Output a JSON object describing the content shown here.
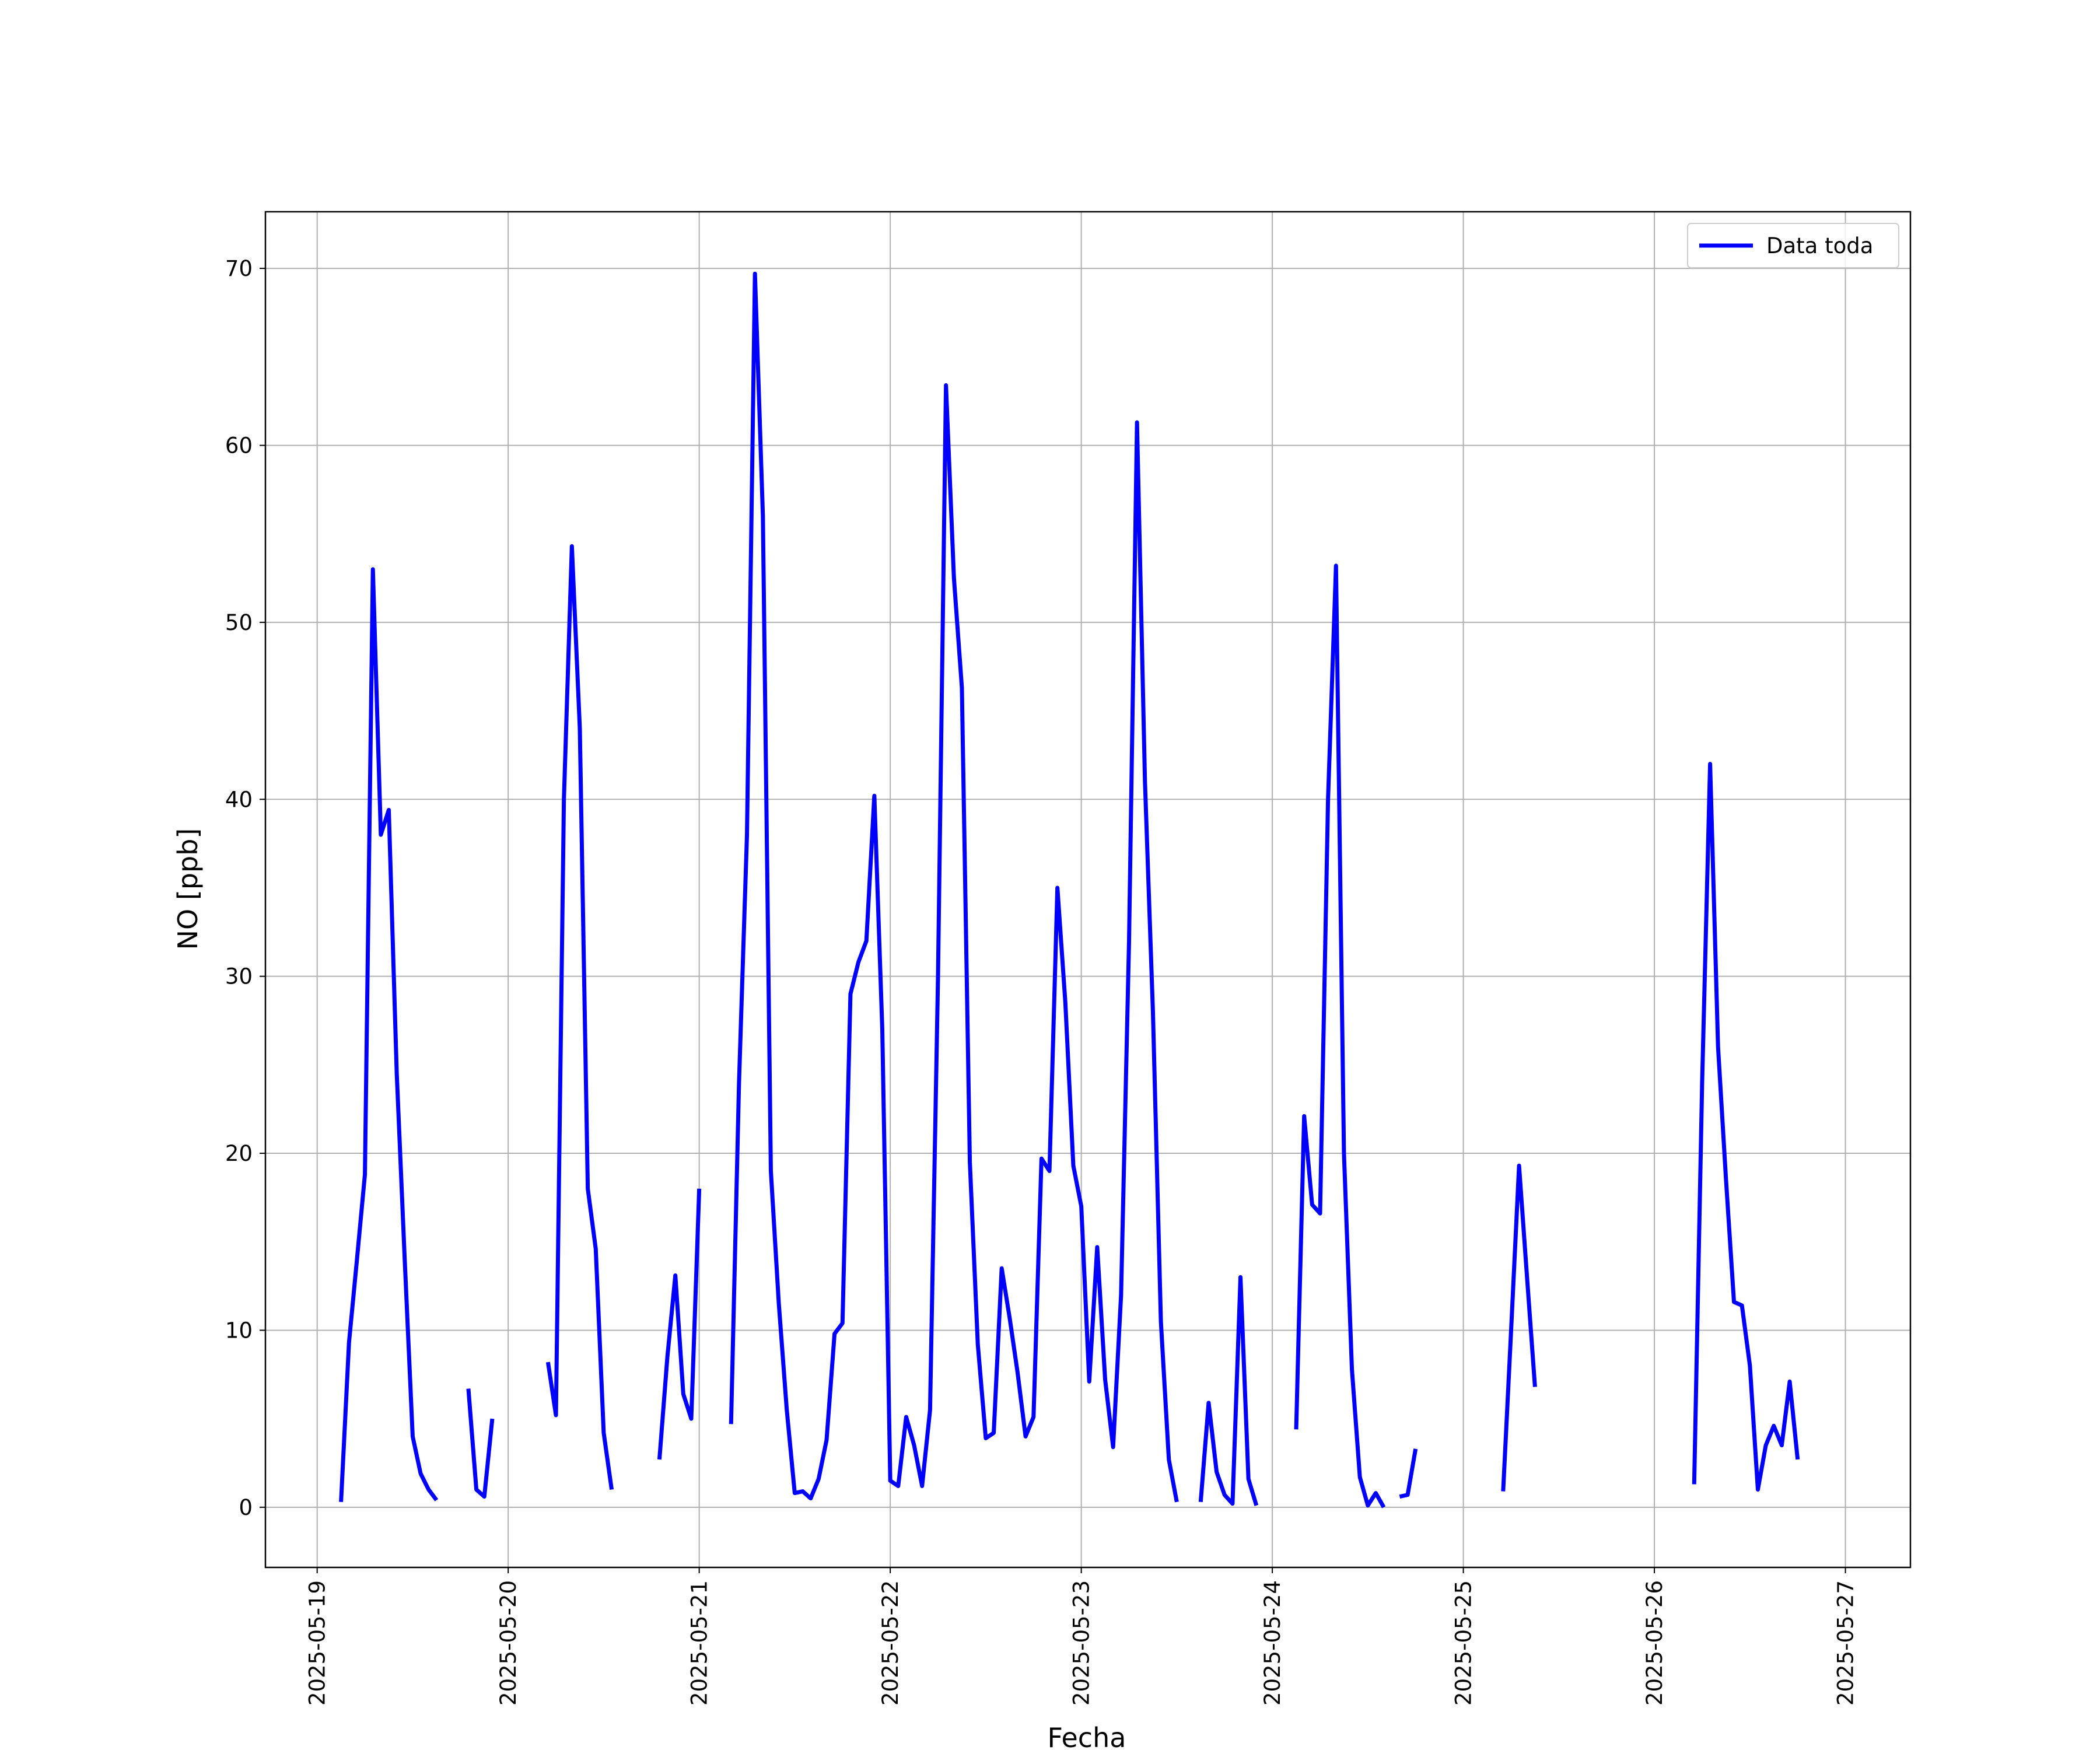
{
  "chart_data": {
    "type": "line",
    "xlabel": "Fecha",
    "ylabel": "NO [ppb]",
    "xlim": [
      "2025-05-18T17:30",
      "2025-05-27T08:10"
    ],
    "xticks": [
      "2025-05-19",
      "2025-05-20",
      "2025-05-21",
      "2025-05-22",
      "2025-05-23",
      "2025-05-24",
      "2025-05-25",
      "2025-05-26",
      "2025-05-27"
    ],
    "ylim": [
      -3.4,
      73.2
    ],
    "yticks": [
      0,
      10,
      20,
      30,
      40,
      50,
      60,
      70
    ],
    "grid": true,
    "legend": "upper right",
    "x": [
      "2025-05-19T03:00",
      "2025-05-19T04:00",
      "2025-05-19T05:00",
      "2025-05-19T06:00",
      "2025-05-19T07:00",
      "2025-05-19T08:00",
      "2025-05-19T09:00",
      "2025-05-19T10:00",
      "2025-05-19T11:00",
      "2025-05-19T12:00",
      "2025-05-19T13:00",
      "2025-05-19T14:00",
      "2025-05-19T15:00",
      "2025-05-19T17:00",
      "2025-05-19T19:00",
      "2025-05-19T20:00",
      "2025-05-19T21:00",
      "2025-05-19T22:00",
      "2025-05-20T00:00",
      "2025-05-20T05:00",
      "2025-05-20T06:00",
      "2025-05-20T07:00",
      "2025-05-20T08:00",
      "2025-05-20T09:00",
      "2025-05-20T10:00",
      "2025-05-20T11:00",
      "2025-05-20T12:00",
      "2025-05-20T13:00",
      "2025-05-20T16:00",
      "2025-05-20T19:00",
      "2025-05-20T20:00",
      "2025-05-20T21:00",
      "2025-05-20T22:00",
      "2025-05-20T23:00",
      "2025-05-21T00:00",
      "2025-05-21T02:00",
      "2025-05-21T04:00",
      "2025-05-21T05:00",
      "2025-05-21T06:00",
      "2025-05-21T07:00",
      "2025-05-21T08:00",
      "2025-05-21T09:00",
      "2025-05-21T10:00",
      "2025-05-21T11:00",
      "2025-05-21T12:00",
      "2025-05-21T13:00",
      "2025-05-21T14:00",
      "2025-05-21T15:00",
      "2025-05-21T16:00",
      "2025-05-21T17:00",
      "2025-05-21T18:00",
      "2025-05-21T19:00",
      "2025-05-21T20:00",
      "2025-05-21T21:00",
      "2025-05-21T22:00",
      "2025-05-21T23:00",
      "2025-05-22T00:00",
      "2025-05-22T01:00",
      "2025-05-22T02:00",
      "2025-05-22T03:00",
      "2025-05-22T04:00",
      "2025-05-22T05:00",
      "2025-05-22T06:00",
      "2025-05-22T07:00",
      "2025-05-22T08:00",
      "2025-05-22T09:00",
      "2025-05-22T10:00",
      "2025-05-22T11:00",
      "2025-05-22T12:00",
      "2025-05-22T13:00",
      "2025-05-22T14:00",
      "2025-05-22T15:00",
      "2025-05-22T16:00",
      "2025-05-22T17:00",
      "2025-05-22T18:00",
      "2025-05-22T19:00",
      "2025-05-22T20:00",
      "2025-05-22T21:00",
      "2025-05-22T22:00",
      "2025-05-22T23:00",
      "2025-05-23T00:00",
      "2025-05-23T01:00",
      "2025-05-23T02:00",
      "2025-05-23T03:00",
      "2025-05-23T04:00",
      "2025-05-23T05:00",
      "2025-05-23T06:00",
      "2025-05-23T07:00",
      "2025-05-23T08:00",
      "2025-05-23T09:00",
      "2025-05-23T10:00",
      "2025-05-23T11:00",
      "2025-05-23T12:00",
      "2025-05-23T13:00",
      "2025-05-23T15:00",
      "2025-05-23T16:00",
      "2025-05-23T17:00",
      "2025-05-23T18:00",
      "2025-05-23T19:00",
      "2025-05-23T20:00",
      "2025-05-23T21:00",
      "2025-05-23T22:00",
      "2025-05-24T00:00",
      "2025-05-24T03:00",
      "2025-05-24T04:00",
      "2025-05-24T05:00",
      "2025-05-24T06:00",
      "2025-05-24T07:00",
      "2025-05-24T08:00",
      "2025-05-24T09:00",
      "2025-05-24T10:00",
      "2025-05-24T11:00",
      "2025-05-24T12:00",
      "2025-05-24T13:00",
      "2025-05-24T14:00",
      "2025-05-24T15:00",
      "2025-05-24T16:00",
      "2025-05-24T17:00",
      "2025-05-24T18:00",
      "2025-05-25T00:00",
      "2025-05-25T05:00",
      "2025-05-25T06:00",
      "2025-05-25T07:00",
      "2025-05-25T08:00",
      "2025-05-25T09:00",
      "2025-05-26T00:00",
      "2025-05-26T05:00",
      "2025-05-26T06:00",
      "2025-05-26T07:00",
      "2025-05-26T08:00",
      "2025-05-26T09:00",
      "2025-05-26T10:00",
      "2025-05-26T11:00",
      "2025-05-26T12:00",
      "2025-05-26T13:00",
      "2025-05-26T14:00",
      "2025-05-26T15:00",
      "2025-05-26T16:00",
      "2025-05-26T17:00",
      "2025-05-26T18:00"
    ],
    "series": [
      {
        "name": "Data toda",
        "color": "#0000ff",
        "values": [
          0.3,
          9.3,
          14,
          18.8,
          53,
          38,
          39.4,
          24.5,
          14,
          4,
          1.9,
          1.0,
          0.4,
          null,
          6.7,
          1.0,
          0.6,
          5.0,
          null,
          8.2,
          5.2,
          40,
          54.3,
          44,
          18,
          14.6,
          4.2,
          1.0,
          null,
          2.7,
          8.5,
          13.1,
          6.4,
          5.0,
          18.0,
          null,
          4.7,
          24,
          38,
          69.7,
          56,
          19,
          11.5,
          5.5,
          0.8,
          0.9,
          0.5,
          1.6,
          3.8,
          9.8,
          10.4,
          29,
          30.8,
          32,
          40.2,
          27,
          1.5,
          1.2,
          5.1,
          3.5,
          1.2,
          5.5,
          30,
          63.4,
          52.5,
          46.3,
          19.5,
          9.2,
          3.9,
          4.2,
          13.5,
          10.7,
          7.6,
          4.0,
          5.1,
          19.7,
          19,
          35,
          28.5,
          19.3,
          17,
          7.1,
          14.7,
          7.2,
          3.4,
          12,
          32,
          61.3,
          41,
          28,
          10.5,
          2.7,
          0.3,
          null,
          0.3,
          5.9,
          2.0,
          0.7,
          0.2,
          13.0,
          1.6,
          0.1,
          null,
          4.4,
          22.1,
          17.1,
          16.6,
          40,
          53.2,
          20,
          7.8,
          1.7,
          0.1,
          0.8,
          0.0,
          null,
          0.6,
          0.7,
          3.3,
          null,
          0.9,
          10,
          19.3,
          13,
          6.8,
          null,
          1.3,
          24,
          42,
          26,
          18.5,
          11.6,
          11.4,
          8.0,
          1.0,
          3.5,
          4.6,
          3.5,
          7.1,
          2.7
        ]
      }
    ]
  }
}
